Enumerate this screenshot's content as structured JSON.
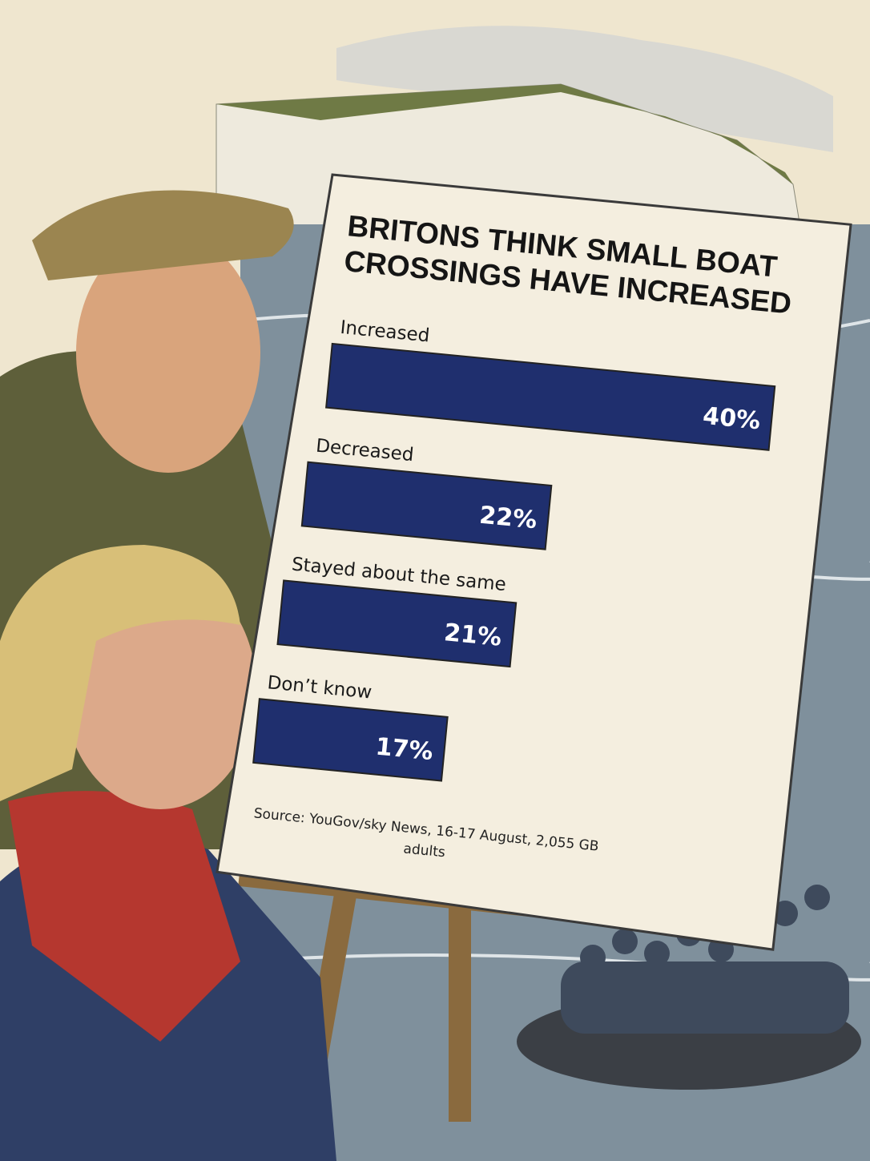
{
  "chart_data": {
    "type": "bar",
    "orientation": "horizontal",
    "title": "BRITONS THINK SMALL BOAT CROSSINGS HAVE INCREASED",
    "categories": [
      "Increased",
      "Decreased",
      "Stayed about the same",
      "Don’t know"
    ],
    "values": [
      40,
      22,
      21,
      17
    ],
    "value_labels": [
      "40%",
      "22%",
      "21%",
      "17%"
    ],
    "color": "#1f2f6e",
    "source": "Source: YouGov/sky News, 16-17 August, 2,055 GB adults"
  }
}
